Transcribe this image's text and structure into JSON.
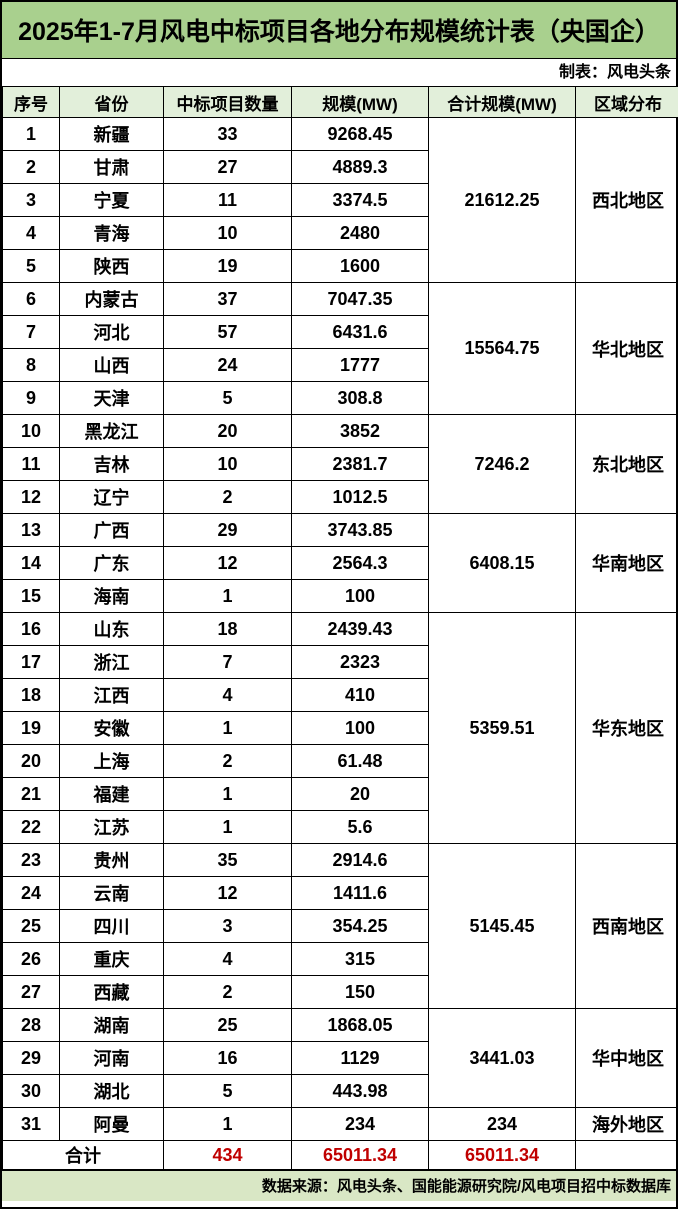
{
  "title": "2025年1-7月风电中标项目各地分布规模统计表（央国企）",
  "byline": "制表：风电头条",
  "source_note": "数据来源：风电头条、国能能源研究院/风电项目招中标数据库",
  "colors": {
    "title_bg": "#a9d08e",
    "header_bg": "#e2efda",
    "source_bg": "#d9e7c5",
    "grid": "#000000",
    "total_text": "#c00000"
  },
  "chart_data": {
    "type": "table",
    "title": "2025年1-7月风电中标项目各地分布规模统计表（央国企）",
    "columns": [
      "序号",
      "省份",
      "中标项目数量",
      "规模(MW)",
      "合计规模(MW)",
      "区域分布"
    ],
    "groups": [
      {
        "region": "西北地区",
        "total": "21612.25",
        "rows": [
          [
            "1",
            "新疆",
            "33",
            "9268.45"
          ],
          [
            "2",
            "甘肃",
            "27",
            "4889.3"
          ],
          [
            "3",
            "宁夏",
            "11",
            "3374.5"
          ],
          [
            "4",
            "青海",
            "10",
            "2480"
          ],
          [
            "5",
            "陕西",
            "19",
            "1600"
          ]
        ]
      },
      {
        "region": "华北地区",
        "total": "15564.75",
        "rows": [
          [
            "6",
            "内蒙古",
            "37",
            "7047.35"
          ],
          [
            "7",
            "河北",
            "57",
            "6431.6"
          ],
          [
            "8",
            "山西",
            "24",
            "1777"
          ],
          [
            "9",
            "天津",
            "5",
            "308.8"
          ]
        ]
      },
      {
        "region": "东北地区",
        "total": "7246.2",
        "rows": [
          [
            "10",
            "黑龙江",
            "20",
            "3852"
          ],
          [
            "11",
            "吉林",
            "10",
            "2381.7"
          ],
          [
            "12",
            "辽宁",
            "2",
            "1012.5"
          ]
        ]
      },
      {
        "region": "华南地区",
        "total": "6408.15",
        "rows": [
          [
            "13",
            "广西",
            "29",
            "3743.85"
          ],
          [
            "14",
            "广东",
            "12",
            "2564.3"
          ],
          [
            "15",
            "海南",
            "1",
            "100"
          ]
        ]
      },
      {
        "region": "华东地区",
        "total": "5359.51",
        "rows": [
          [
            "16",
            "山东",
            "18",
            "2439.43"
          ],
          [
            "17",
            "浙江",
            "7",
            "2323"
          ],
          [
            "18",
            "江西",
            "4",
            "410"
          ],
          [
            "19",
            "安徽",
            "1",
            "100"
          ],
          [
            "20",
            "上海",
            "2",
            "61.48"
          ],
          [
            "21",
            "福建",
            "1",
            "20"
          ],
          [
            "22",
            "江苏",
            "1",
            "5.6"
          ]
        ]
      },
      {
        "region": "西南地区",
        "total": "5145.45",
        "rows": [
          [
            "23",
            "贵州",
            "35",
            "2914.6"
          ],
          [
            "24",
            "云南",
            "12",
            "1411.6"
          ],
          [
            "25",
            "四川",
            "3",
            "354.25"
          ],
          [
            "26",
            "重庆",
            "4",
            "315"
          ],
          [
            "27",
            "西藏",
            "2",
            "150"
          ]
        ]
      },
      {
        "region": "华中地区",
        "total": "3441.03",
        "rows": [
          [
            "28",
            "湖南",
            "25",
            "1868.05"
          ],
          [
            "29",
            "河南",
            "16",
            "1129"
          ],
          [
            "30",
            "湖北",
            "5",
            "443.98"
          ]
        ]
      },
      {
        "region": "海外地区",
        "total": "234",
        "rows": [
          [
            "31",
            "阿曼",
            "1",
            "234"
          ]
        ]
      }
    ],
    "grand_total": {
      "label": "合计",
      "project_count": "434",
      "scale_mw": "65011.34",
      "total_scale_mw": "65011.34"
    }
  }
}
